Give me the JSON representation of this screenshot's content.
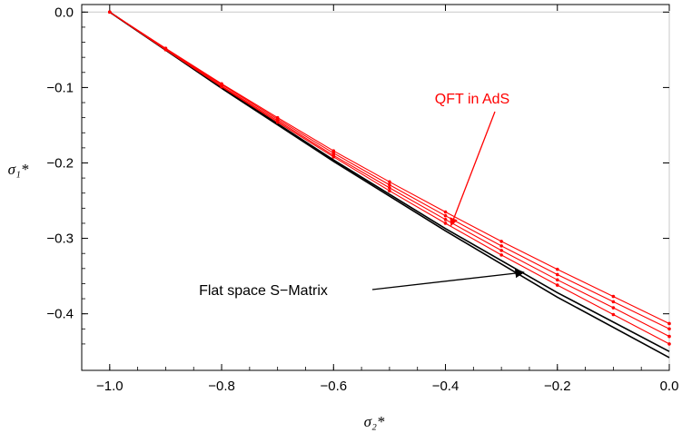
{
  "chart_data": {
    "type": "line",
    "title": "",
    "xlabel": "σ₂*",
    "ylabel": "σ₁*",
    "xlim": [
      -1.05,
      0.0
    ],
    "ylim": [
      -0.475,
      0.01
    ],
    "grid": false,
    "x_ticks": [
      -1.0,
      -0.8,
      -0.6,
      -0.4,
      -0.2,
      0.0
    ],
    "x_tick_labels": [
      "−1.0",
      "−0.8",
      "−0.6",
      "−0.4",
      "−0.2",
      "0.0"
    ],
    "y_ticks": [
      0.0,
      -0.1,
      -0.2,
      -0.3,
      -0.4
    ],
    "y_tick_labels": [
      "0.0",
      "−0.1",
      "−0.2",
      "−0.3",
      "−0.4"
    ],
    "series": [
      {
        "color": "#000000",
        "markers": false,
        "x": [
          -1.0,
          -0.8,
          -0.6,
          -0.4,
          -0.2,
          0.0
        ],
        "y": [
          0.0,
          -0.101,
          -0.198,
          -0.29,
          -0.378,
          -0.458
        ]
      },
      {
        "color": "#000000",
        "markers": false,
        "x": [
          -1.0,
          -0.8,
          -0.6,
          -0.4,
          -0.2,
          0.0
        ],
        "y": [
          0.0,
          -0.1,
          -0.196,
          -0.287,
          -0.372,
          -0.45
        ]
      },
      {
        "color": "#ff0000",
        "markers": true,
        "x": [
          -1.0,
          -0.9,
          -0.8,
          -0.7,
          -0.6,
          -0.5,
          -0.4,
          -0.3,
          -0.2,
          -0.1,
          0.0
        ],
        "y": [
          0.0,
          -0.05,
          -0.099,
          -0.146,
          -0.192,
          -0.237,
          -0.28,
          -0.322,
          -0.362,
          -0.401,
          -0.44
        ]
      },
      {
        "color": "#ff0000",
        "markers": true,
        "x": [
          -1.0,
          -0.9,
          -0.8,
          -0.7,
          -0.6,
          -0.5,
          -0.4,
          -0.3,
          -0.2,
          -0.1,
          0.0
        ],
        "y": [
          0.0,
          -0.049,
          -0.098,
          -0.144,
          -0.19,
          -0.233,
          -0.275,
          -0.316,
          -0.355,
          -0.392,
          -0.43
        ]
      },
      {
        "color": "#ff0000",
        "markers": true,
        "x": [
          -1.0,
          -0.9,
          -0.8,
          -0.7,
          -0.6,
          -0.5,
          -0.4,
          -0.3,
          -0.2,
          -0.1,
          0.0
        ],
        "y": [
          0.0,
          -0.049,
          -0.096,
          -0.142,
          -0.187,
          -0.229,
          -0.27,
          -0.31,
          -0.348,
          -0.384,
          -0.42
        ]
      },
      {
        "color": "#ff0000",
        "markers": true,
        "x": [
          -1.0,
          -0.9,
          -0.8,
          -0.7,
          -0.6,
          -0.5,
          -0.4,
          -0.3,
          -0.2,
          -0.1,
          0.0
        ],
        "y": [
          0.0,
          -0.048,
          -0.095,
          -0.14,
          -0.184,
          -0.225,
          -0.265,
          -0.304,
          -0.341,
          -0.377,
          -0.413
        ]
      }
    ],
    "annotations": [
      {
        "text": "QFT in AdS",
        "color": "#ff0000",
        "arrow_tip": [
          -0.39,
          -0.283
        ]
      },
      {
        "text": "Flat space S−Matrix",
        "color": "#000000",
        "arrow_tip": [
          -0.26,
          -0.345
        ]
      }
    ]
  }
}
